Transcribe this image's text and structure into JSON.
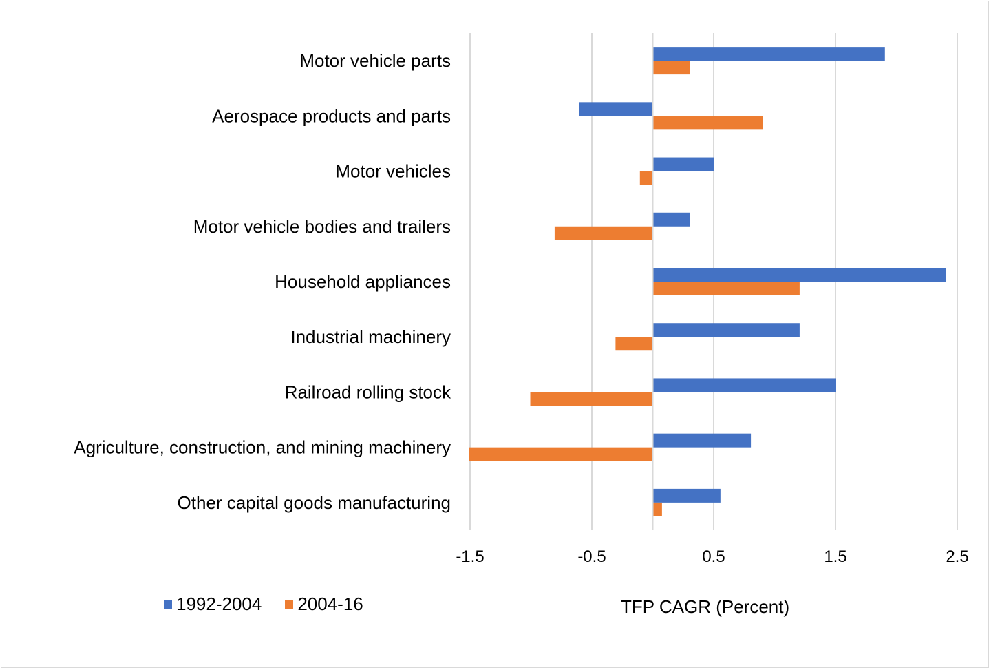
{
  "chart_data": {
    "type": "bar",
    "orientation": "horizontal",
    "title": "",
    "xlabel": "TFP CAGR (Percent)",
    "ylabel": "",
    "xlim": [
      -1.5,
      2.5
    ],
    "xticks": [
      "-1.5",
      "-0.5",
      "0.5",
      "1.5",
      "2.5"
    ],
    "xtick_values": [
      -1.5,
      -0.5,
      0.5,
      1.5,
      2.5
    ],
    "grid": true,
    "legend_position": "bottom-left",
    "categories": [
      "Motor vehicle parts",
      "Aerospace products and parts",
      "Motor vehicles",
      "Motor vehicle bodies and trailers",
      "Household appliances",
      "Industrial machinery",
      "Railroad rolling stock",
      "Agriculture, construction, and mining machinery",
      "Other capital goods manufacturing"
    ],
    "series": [
      {
        "name": "1992-2004",
        "color": "#4472c4",
        "values": [
          1.9,
          -0.6,
          0.5,
          0.3,
          2.4,
          1.2,
          1.5,
          0.8,
          0.55
        ]
      },
      {
        "name": "2004-16",
        "color": "#ed7d31",
        "values": [
          0.3,
          0.9,
          -0.1,
          -0.8,
          1.2,
          -0.3,
          -1.0,
          -1.5,
          0.07
        ]
      }
    ]
  }
}
